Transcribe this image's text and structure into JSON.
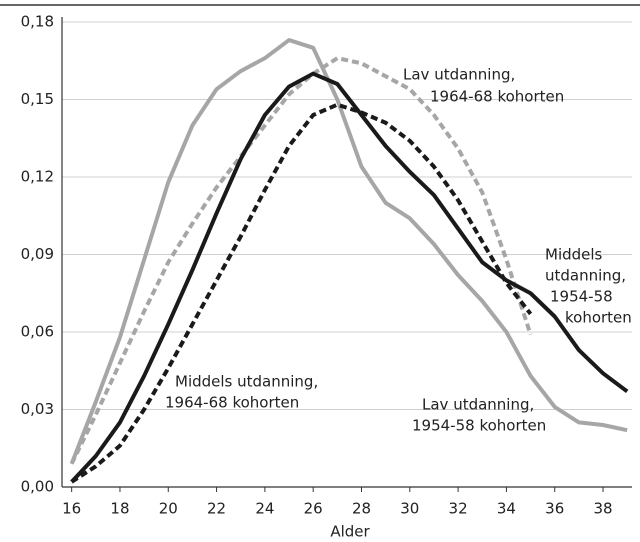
{
  "chart_data": {
    "type": "line",
    "x_label": "Alder",
    "x": [
      16,
      17,
      18,
      19,
      20,
      21,
      22,
      23,
      24,
      25,
      26,
      27,
      28,
      29,
      30,
      31,
      32,
      33,
      34,
      35,
      36,
      37,
      38,
      39
    ],
    "series": [
      {
        "color": "#a6a6a6",
        "dash": false,
        "values": [
          0.009,
          0.033,
          0.058,
          0.088,
          0.118,
          0.14,
          0.154,
          0.161,
          0.166,
          0.173,
          0.17,
          0.15,
          0.124,
          0.11,
          0.104,
          0.094,
          0.082,
          0.072,
          0.06,
          0.043,
          0.031,
          0.025,
          0.024,
          0.022
        ]
      },
      {
        "color": "#a6a6a6",
        "dash": true,
        "values": [
          0.009,
          0.028,
          0.048,
          0.068,
          0.087,
          0.102,
          0.116,
          0.128,
          0.14,
          0.152,
          0.16,
          0.166,
          0.164,
          0.159,
          0.154,
          0.144,
          0.131,
          0.114,
          0.088,
          0.059,
          null,
          null,
          null,
          null
        ]
      },
      {
        "color": "#1a1a1a",
        "dash": false,
        "values": [
          0.002,
          0.012,
          0.025,
          0.043,
          0.063,
          0.084,
          0.106,
          0.127,
          0.144,
          0.155,
          0.16,
          0.156,
          0.144,
          0.132,
          0.122,
          0.113,
          0.1,
          0.087,
          0.08,
          0.075,
          0.066,
          0.053,
          0.044,
          0.037
        ]
      },
      {
        "color": "#1a1a1a",
        "dash": true,
        "values": [
          0.002,
          0.008,
          0.016,
          0.03,
          0.046,
          0.063,
          0.08,
          0.097,
          0.115,
          0.132,
          0.144,
          0.148,
          0.145,
          0.141,
          0.134,
          0.124,
          0.111,
          0.095,
          0.079,
          0.067,
          null,
          null,
          null,
          null
        ]
      }
    ],
    "annotations": [
      [
        "Lav utdanning,",
        "1964-68 kohorten"
      ],
      [
        "Middels",
        "utdanning,",
        "1954-58",
        "kohorten"
      ],
      [
        "Middels utdanning,",
        "1964-68 kohorten"
      ],
      [
        "Lav utdanning,",
        "1954-58 kohorten"
      ]
    ],
    "xlim": [
      15.6,
      39.2
    ],
    "xticks": [
      16,
      18,
      20,
      22,
      24,
      26,
      28,
      30,
      32,
      34,
      36,
      38
    ],
    "ylim": [
      0,
      0.18
    ],
    "yticks": [
      {
        "value": 0,
        "label": "0,00"
      },
      {
        "value": 0.03,
        "label": "0,03"
      },
      {
        "value": 0.06,
        "label": "0,06"
      },
      {
        "value": 0.09,
        "label": "0,09"
      },
      {
        "value": 0.12,
        "label": "0,12"
      },
      {
        "value": 0.15,
        "label": "0,15"
      },
      {
        "value": 0.18,
        "label": "0,18"
      }
    ],
    "grid": true
  }
}
